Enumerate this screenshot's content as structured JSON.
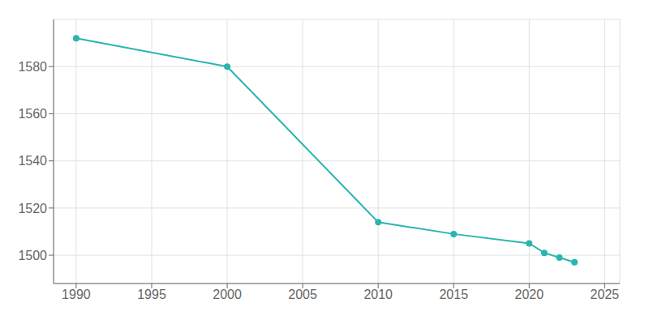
{
  "chart_data": {
    "type": "line",
    "x": [
      1990,
      2000,
      2010,
      2015,
      2020,
      2021,
      2022,
      2023
    ],
    "values": [
      1592,
      1580,
      1514,
      1509,
      1505,
      1501,
      1499,
      1497
    ],
    "color": "#2ab5b0",
    "marker": "circle",
    "xlim": [
      1988.5,
      2026
    ],
    "ylim": [
      1488,
      1600
    ],
    "xticks": [
      1990,
      1995,
      2000,
      2005,
      2010,
      2015,
      2020,
      2025
    ],
    "yticks": [
      1500,
      1520,
      1540,
      1560,
      1580
    ],
    "grid": true
  }
}
